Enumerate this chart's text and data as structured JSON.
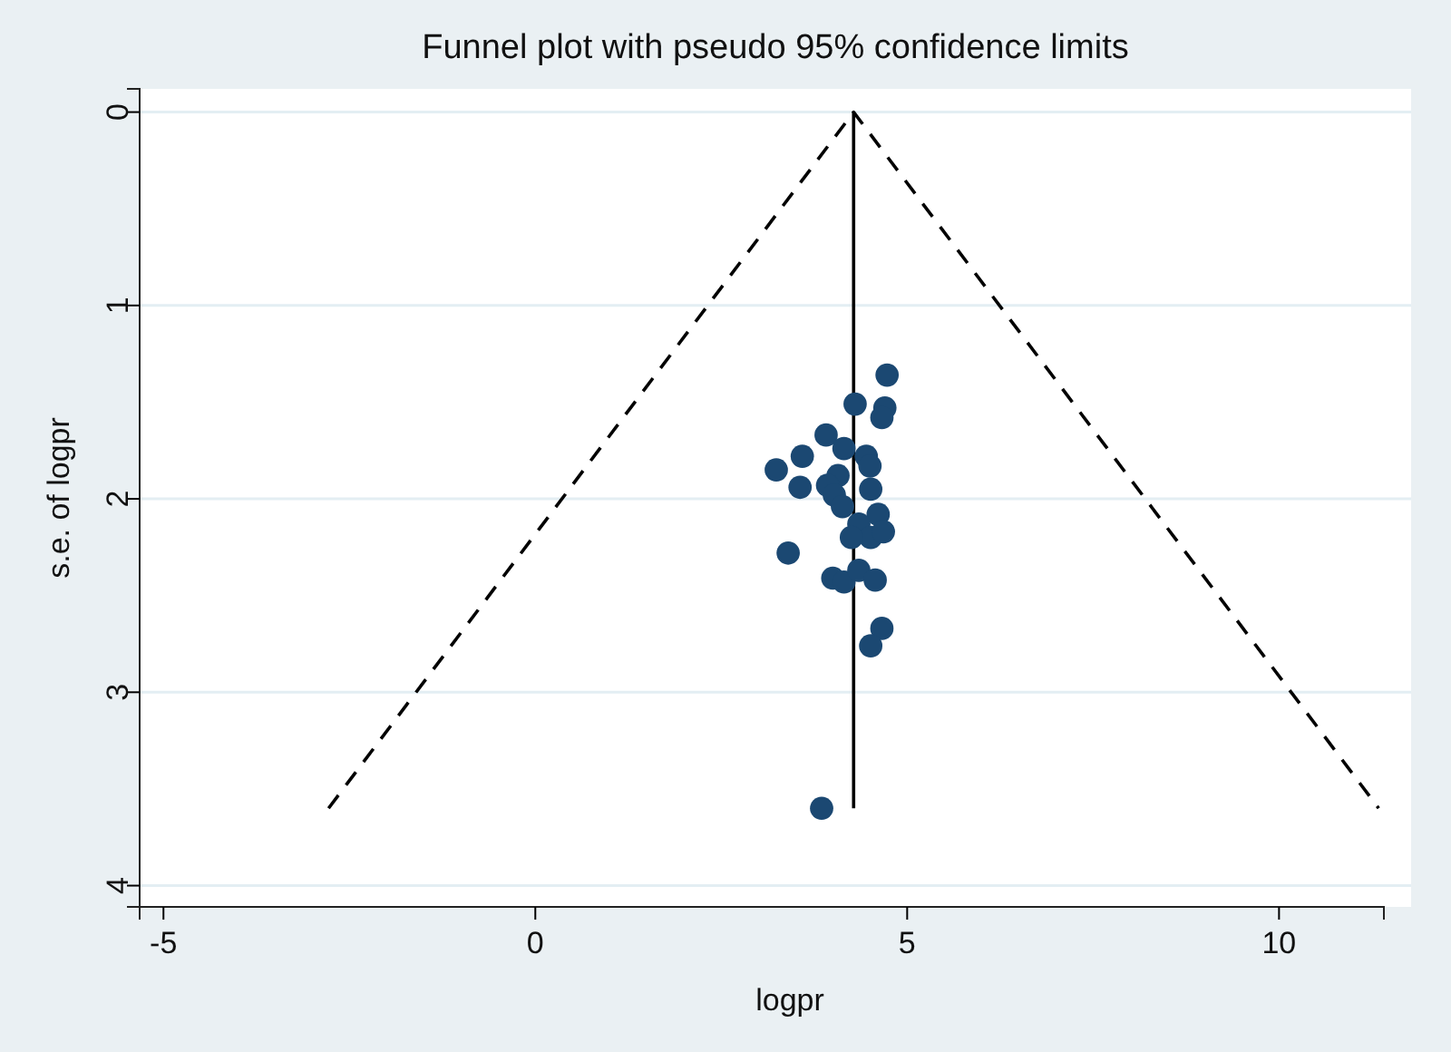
{
  "chart_data": {
    "type": "scatter",
    "title": "Funnel plot with pseudo 95% confidence limits",
    "xlabel": "logpr",
    "ylabel": "s.e. of logpr",
    "xlim": [
      -5.32,
      11.41
    ],
    "xticks": [
      -5,
      0,
      5,
      10
    ],
    "ylim": [
      4.11,
      -0.12
    ],
    "yticks": [
      0,
      1,
      2,
      3,
      4
    ],
    "grid": "y",
    "marker": "circle",
    "series": [
      {
        "color": "#1b4872",
        "x": [
          4.73,
          4.3,
          4.7,
          4.66,
          3.91,
          4.15,
          3.59,
          3.24,
          4.45,
          4.5,
          4.07,
          3.56,
          3.93,
          4.51,
          4.02,
          4.13,
          4.61,
          4.35,
          4.51,
          4.68,
          4.25,
          3.4,
          4.0,
          4.15,
          4.35,
          4.57,
          4.66,
          4.51,
          3.85
        ],
        "values": [
          1.36,
          1.51,
          1.53,
          1.58,
          1.67,
          1.74,
          1.78,
          1.85,
          1.78,
          1.83,
          1.88,
          1.94,
          1.93,
          1.95,
          1.98,
          2.04,
          2.08,
          2.13,
          2.2,
          2.17,
          2.2,
          2.28,
          2.41,
          2.43,
          2.37,
          2.42,
          2.67,
          2.76,
          3.6
        ]
      },
      {
        "type": "line",
        "color": "#000000",
        "line_style": "dashed",
        "marker": "none",
        "x": [
          -2.78,
          4.28,
          11.34
        ],
        "values": [
          3.6,
          0,
          3.6
        ]
      },
      {
        "type": "line",
        "color": "#000000",
        "line_style": "solid",
        "marker": "none",
        "x": [
          4.28,
          4.28
        ],
        "values": [
          0,
          3.6
        ]
      }
    ]
  }
}
